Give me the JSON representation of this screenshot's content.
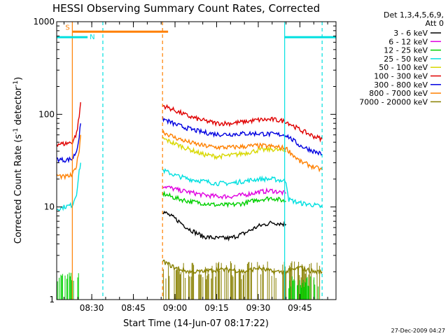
{
  "chart_data": {
    "type": "line",
    "title": "HESSI Observing Summary Count Rates, Corrected",
    "xlabel": "Start Time (14-Jun-07 08:17:22)",
    "ylabel_main": "Corrected Count Rate (s",
    "ylabel_sup1": "-1",
    "ylabel_mid": " detector",
    "ylabel_sup2": "-1",
    "ylabel_end": ")",
    "yscale": "log",
    "ylim": [
      1,
      1000
    ],
    "xlim": [
      "08:17:22",
      "09:58:00"
    ],
    "x_ticks": [
      "08:30",
      "08:45",
      "09:00",
      "09:15",
      "09:30",
      "09:45"
    ],
    "y_ticks": [
      "1",
      "10",
      "100",
      "1000"
    ],
    "legend_title": [
      "Det 1,3,4,5,6,9,",
      "Att 0"
    ],
    "legend_position": "right",
    "series": [
      {
        "name": "3 - 6 keV",
        "color": "#000000",
        "segments": [
          {
            "x": [
              "08:55:30",
              "09:00",
              "09:05",
              "09:10",
              "09:15",
              "09:20",
              "09:25",
              "09:30",
              "09:35",
              "09:40"
            ],
            "y": [
              9,
              7.5,
              5.8,
              4.8,
              4.6,
              4.6,
              5.2,
              6.2,
              6.8,
              6.5
            ]
          }
        ]
      },
      {
        "name": "6 - 12 keV",
        "color": "#e000e0",
        "segments": [
          {
            "x": [
              "08:55:30",
              "09:00",
              "09:05",
              "09:10",
              "09:15",
              "09:20",
              "09:25",
              "09:30",
              "09:35",
              "09:40"
            ],
            "y": [
              17,
              15.5,
              14.5,
              13.5,
              13,
              13,
              13.5,
              14.5,
              15,
              14
            ]
          }
        ]
      },
      {
        "name": "12 - 25 keV",
        "color": "#00d000",
        "segments": [
          {
            "x": [
              "08:55:30",
              "09:00",
              "09:05",
              "09:10",
              "09:15",
              "09:20",
              "09:25",
              "09:30",
              "09:35",
              "09:40"
            ],
            "y": [
              14,
              12.5,
              11.5,
              11,
              10.5,
              10.5,
              11,
              12,
              12.5,
              11.5
            ]
          }
        ]
      },
      {
        "name": "25 - 50 keV",
        "color": "#00e0e0",
        "segments": [
          {
            "x": [
              "08:17:22",
              "08:20",
              "08:23",
              "08:24:30",
              "08:25:30",
              "08:26"
            ],
            "y": [
              9.5,
              10,
              10.5,
              14,
              24,
              30
            ]
          },
          {
            "x": [
              "08:55:30",
              "09:00",
              "09:05",
              "09:10",
              "09:15",
              "09:20",
              "09:25",
              "09:30",
              "09:35",
              "09:40",
              "09:41",
              "09:45",
              "09:50",
              "09:53"
            ],
            "y": [
              25,
              22,
              20,
              19,
              18,
              18,
              19,
              20,
              20,
              19,
              12,
              11,
              10.5,
              10
            ]
          }
        ]
      },
      {
        "name": "50 - 100 keV",
        "color": "#d8d800",
        "segments": [
          {
            "x": [
              "08:55:30",
              "09:00",
              "09:05",
              "09:10",
              "09:15",
              "09:20",
              "09:25",
              "09:30",
              "09:35",
              "09:40"
            ],
            "y": [
              55,
              48,
              42,
              37,
              35,
              36,
              38,
              41,
              42,
              40
            ]
          }
        ]
      },
      {
        "name": "100 - 300 keV",
        "color": "#e00000",
        "segments": [
          {
            "x": [
              "08:17:22",
              "08:20",
              "08:23",
              "08:24:30",
              "08:25:30",
              "08:26"
            ],
            "y": [
              48,
              48,
              50,
              62,
              95,
              135
            ]
          },
          {
            "x": [
              "08:55:30",
              "09:00",
              "09:05",
              "09:10",
              "09:15",
              "09:20",
              "09:25",
              "09:30",
              "09:35",
              "09:40",
              "09:45",
              "09:50",
              "09:53"
            ],
            "y": [
              125,
              110,
              95,
              86,
              80,
              80,
              83,
              87,
              88,
              84,
              68,
              58,
              54
            ]
          }
        ]
      },
      {
        "name": "300 - 800 keV",
        "color": "#0000e0",
        "segments": [
          {
            "x": [
              "08:17:22",
              "08:20",
              "08:23",
              "08:24:30",
              "08:25:30",
              "08:26"
            ],
            "y": [
              33,
              32,
              33,
              40,
              58,
              80
            ]
          },
          {
            "x": [
              "08:55:30",
              "09:00",
              "09:05",
              "09:10",
              "09:15",
              "09:20",
              "09:25",
              "09:30",
              "09:35",
              "09:40",
              "09:45",
              "09:50",
              "09:53"
            ],
            "y": [
              90,
              78,
              70,
              64,
              61,
              61,
              62,
              62,
              61,
              60,
              46,
              40,
              37
            ]
          }
        ]
      },
      {
        "name": "800 - 7000 keV",
        "color": "#ff8000",
        "segments": [
          {
            "x": [
              "08:17:22",
              "08:20",
              "08:23",
              "08:24:30",
              "08:25:30",
              "08:26"
            ],
            "y": [
              22,
              21,
              22,
              28,
              42,
              60
            ]
          },
          {
            "x": [
              "08:55:30",
              "09:00",
              "09:05",
              "09:10",
              "09:15",
              "09:20",
              "09:25",
              "09:30",
              "09:35",
              "09:40",
              "09:45",
              "09:50",
              "09:53"
            ],
            "y": [
              65,
              56,
              50,
              46,
              44,
              44,
              45,
              46,
              45,
              43,
              31,
              27,
              25
            ]
          }
        ]
      },
      {
        "name": "7000 - 20000 keV",
        "color": "#888000",
        "segments": [
          {
            "x": [
              "08:55:30",
              "09:00",
              "09:05",
              "09:10",
              "09:15",
              "09:20",
              "09:25",
              "09:30",
              "09:35",
              "09:40",
              "09:45",
              "09:50",
              "09:53"
            ],
            "y": [
              2.6,
              2.2,
              2,
              2,
              2.1,
              2.1,
              2,
              2.2,
              2,
              2,
              2.2,
              2,
              2
            ]
          }
        ]
      }
    ],
    "noise_bands": [
      {
        "series": "12 - 25 keV",
        "x": [
          "08:17:22",
          "08:25:40"
        ],
        "y": [
          1,
          2
        ]
      },
      {
        "series": "7000 - 20000 keV",
        "x": [
          "08:55:30",
          "09:53"
        ],
        "y": [
          1,
          2.6
        ]
      },
      {
        "series": "12 - 25 keV",
        "x": [
          "09:41",
          "09:53"
        ],
        "y": [
          1,
          1.8
        ]
      }
    ],
    "flag_segments": [
      {
        "label": "S",
        "color": "#ff8000",
        "x": [
          "08:23:00",
          "08:57:30"
        ],
        "y": 780
      },
      {
        "label": "N",
        "color": "#00e0e0",
        "x": [
          "08:17:22",
          "08:28:30"
        ],
        "y": 680
      },
      {
        "label": "",
        "color": "#00e0e0",
        "x": [
          "09:39:30",
          "09:58:00"
        ],
        "y": 680
      }
    ],
    "vlines": [
      {
        "x": "08:23:00",
        "color": "#ff8000",
        "style": "solid"
      },
      {
        "x": "08:34:00",
        "color": "#00e0e0",
        "style": "dashed"
      },
      {
        "x": "08:55:30",
        "color": "#ff8000",
        "style": "dashed"
      },
      {
        "x": "09:39:30",
        "color": "#00e0e0",
        "style": "solid"
      },
      {
        "x": "09:53:00",
        "color": "#00e0e0",
        "style": "dashed"
      }
    ],
    "footer_date": "27-Dec-2009 04:27"
  }
}
